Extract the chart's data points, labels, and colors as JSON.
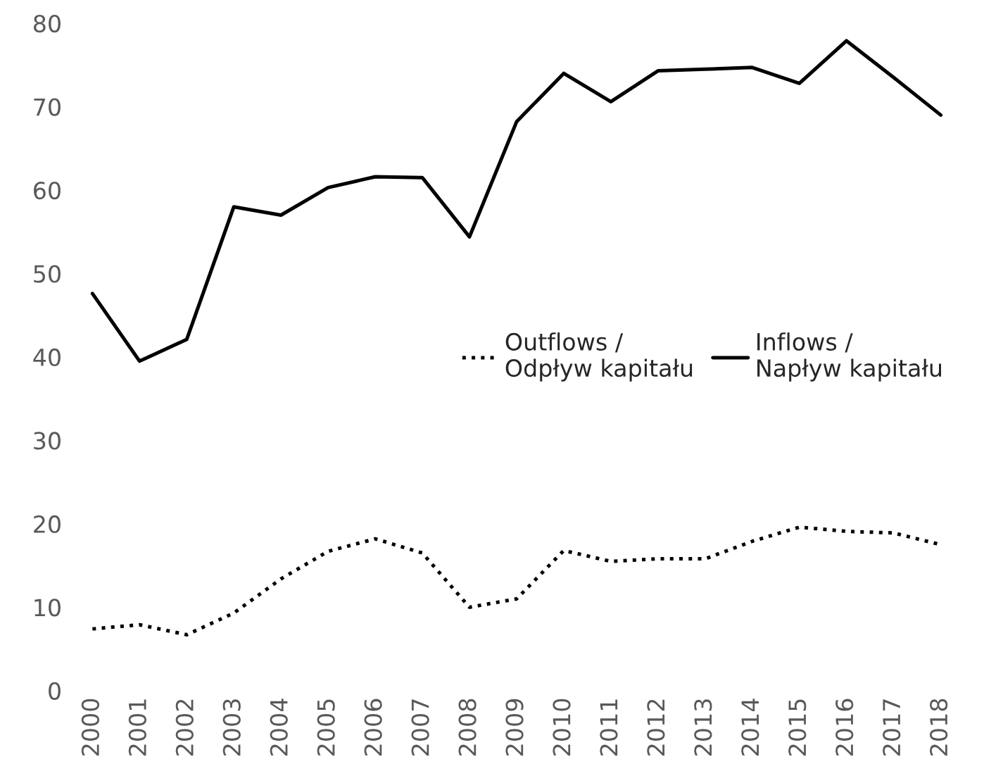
{
  "chart_data": {
    "type": "line",
    "categories": [
      "2000",
      "2001",
      "2002",
      "2003",
      "2004",
      "2005",
      "2006",
      "2007",
      "2008",
      "2009",
      "2010",
      "2011",
      "2012",
      "2013",
      "2014",
      "2015",
      "2016",
      "2017",
      "2018"
    ],
    "series": [
      {
        "name": "Outflows /\nOdpływ kapitału",
        "color": "#000000",
        "line_style": "dotted",
        "values": [
          7.4,
          7.9,
          6.7,
          9.3,
          13.4,
          16.7,
          18.2,
          16.5,
          10.0,
          11.0,
          16.8,
          15.5,
          15.8,
          15.8,
          17.9,
          19.6,
          19.1,
          18.9,
          17.5
        ]
      },
      {
        "name": "Inflows /\nNapływ kapitału",
        "color": "#000000",
        "line_style": "solid",
        "values": [
          47.6,
          39.5,
          42.1,
          58.0,
          57.0,
          60.3,
          61.6,
          61.5,
          54.4,
          68.2,
          74.0,
          70.6,
          74.3,
          74.5,
          74.7,
          72.8,
          77.9,
          73.5,
          69.0
        ]
      }
    ],
    "ylim": [
      0,
      80
    ],
    "yticks": [
      0,
      10,
      20,
      30,
      40,
      50,
      60,
      70,
      80
    ],
    "grid": false,
    "legend": "right"
  }
}
